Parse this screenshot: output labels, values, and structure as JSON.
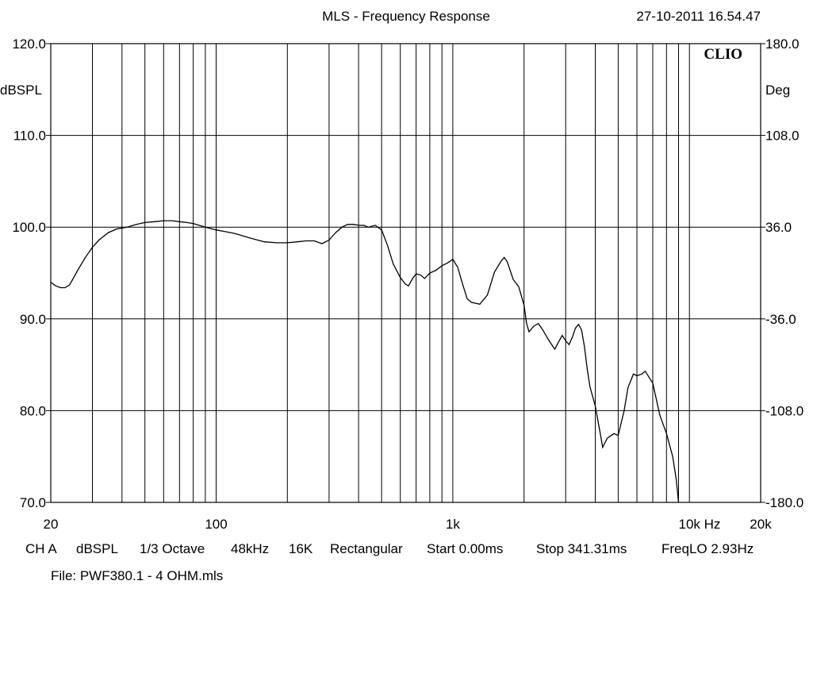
{
  "header": {
    "title": "MLS - Frequency Response",
    "timestamp": "27-10-2011 16.54.47",
    "brand": "CLIO"
  },
  "chart_data": {
    "type": "line",
    "x_scale": "log",
    "xlim": [
      20,
      20000
    ],
    "ylim": [
      70,
      120
    ],
    "y2lim": [
      -180,
      180
    ],
    "grid": true,
    "ylabel": "dBSPL",
    "y2label": "Deg",
    "xunit": "Hz",
    "x_tick_labels": [
      {
        "value": 20,
        "label": "20"
      },
      {
        "value": 100,
        "label": "100"
      },
      {
        "value": 1000,
        "label": "1k"
      },
      {
        "value": 10000,
        "label": "10k"
      },
      {
        "value": 20000,
        "label": "20k"
      }
    ],
    "y_tick_labels": [
      "70.0",
      "80.0",
      "90.0",
      "100.0",
      "110.0",
      "120.0"
    ],
    "y2_tick_labels": [
      "-180.0",
      "-108.0",
      "-36.0",
      "36.0",
      "108.0",
      "180.0"
    ],
    "y_ticks": [
      70,
      80,
      90,
      100,
      110,
      120
    ],
    "x_gridlines": [
      30,
      40,
      50,
      60,
      70,
      80,
      90,
      100,
      200,
      300,
      400,
      500,
      600,
      700,
      800,
      900,
      1000,
      2000,
      3000,
      4000,
      5000,
      6000,
      7000,
      8000,
      9000,
      10000
    ],
    "series": [
      {
        "color": "#000000",
        "x": [
          20,
          21,
          22,
          23,
          24,
          25,
          26,
          28,
          30,
          32,
          35,
          38,
          42,
          46,
          50,
          55,
          60,
          65,
          70,
          75,
          80,
          90,
          100,
          110,
          120,
          140,
          160,
          180,
          200,
          220,
          240,
          260,
          280,
          300,
          320,
          340,
          360,
          380,
          400,
          420,
          440,
          470,
          500,
          530,
          560,
          600,
          630,
          650,
          680,
          700,
          730,
          760,
          800,
          850,
          900,
          950,
          1000,
          1050,
          1100,
          1150,
          1200,
          1300,
          1400,
          1500,
          1600,
          1650,
          1700,
          1800,
          1900,
          2000,
          2050,
          2100,
          2200,
          2300,
          2400,
          2500,
          2600,
          2700,
          2800,
          2900,
          3000,
          3100,
          3200,
          3300,
          3400,
          3500,
          3600,
          3700,
          3800,
          4000,
          4200,
          4300,
          4500,
          4800,
          5000,
          5300,
          5500,
          5800,
          6000,
          6300,
          6500,
          7000,
          7500,
          8000,
          8500,
          8800,
          9000
        ],
        "values": [
          94.0,
          93.6,
          93.4,
          93.4,
          93.7,
          94.5,
          95.3,
          96.7,
          97.8,
          98.6,
          99.4,
          99.8,
          100.0,
          100.3,
          100.5,
          100.6,
          100.7,
          100.7,
          100.6,
          100.5,
          100.4,
          100.0,
          99.7,
          99.5,
          99.3,
          98.8,
          98.4,
          98.3,
          98.3,
          98.4,
          98.5,
          98.5,
          98.2,
          98.6,
          99.4,
          100.0,
          100.3,
          100.3,
          100.2,
          100.2,
          100.0,
          100.2,
          99.7,
          98.0,
          96.0,
          94.5,
          93.8,
          93.6,
          94.5,
          94.9,
          94.8,
          94.4,
          95.0,
          95.3,
          95.8,
          96.1,
          96.5,
          95.6,
          93.8,
          92.2,
          91.8,
          91.6,
          92.6,
          95.1,
          96.3,
          96.7,
          96.2,
          94.3,
          93.5,
          91.5,
          89.5,
          88.6,
          89.2,
          89.5,
          88.8,
          88.0,
          87.3,
          86.7,
          87.5,
          88.2,
          87.6,
          87.2,
          88.0,
          89.0,
          89.4,
          88.8,
          87.0,
          84.5,
          82.6,
          80.5,
          77.5,
          76.0,
          77.0,
          77.5,
          77.3,
          80.0,
          82.5,
          84.0,
          83.8,
          84.0,
          84.3,
          83.0,
          79.5,
          77.5,
          75.0,
          72.5,
          70.0
        ]
      }
    ]
  },
  "footer": {
    "settings": [
      {
        "key": "channel",
        "text": "CH A"
      },
      {
        "key": "unit",
        "text": "dBSPL"
      },
      {
        "key": "smoothing",
        "text": "1/3 Octave"
      },
      {
        "key": "sample_rate",
        "text": "48kHz"
      },
      {
        "key": "size",
        "text": "16K"
      },
      {
        "key": "window",
        "text": "Rectangular"
      },
      {
        "key": "start",
        "text": "Start 0.00ms"
      },
      {
        "key": "stop",
        "text": "Stop 341.31ms"
      },
      {
        "key": "freqlo",
        "text": "FreqLO 2.93Hz"
      }
    ],
    "file": "File: PWF380.1 - 4 OHM.mls"
  }
}
